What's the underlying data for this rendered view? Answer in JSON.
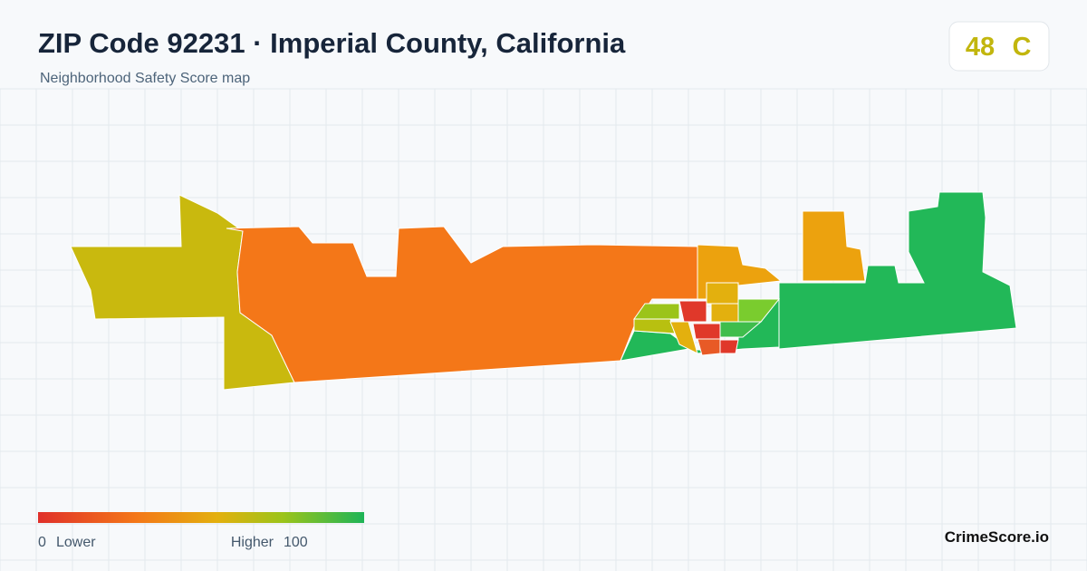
{
  "header": {
    "title": "ZIP Code 92231 · Imperial County, California",
    "subtitle": "Neighborhood Safety Score map"
  },
  "score": {
    "value": "48",
    "grade": "C"
  },
  "legend": {
    "min": "0",
    "min_label": "Lower",
    "max_label": "Higher",
    "max": "100"
  },
  "footer": {
    "brand": "CrimeScore.io"
  }
}
